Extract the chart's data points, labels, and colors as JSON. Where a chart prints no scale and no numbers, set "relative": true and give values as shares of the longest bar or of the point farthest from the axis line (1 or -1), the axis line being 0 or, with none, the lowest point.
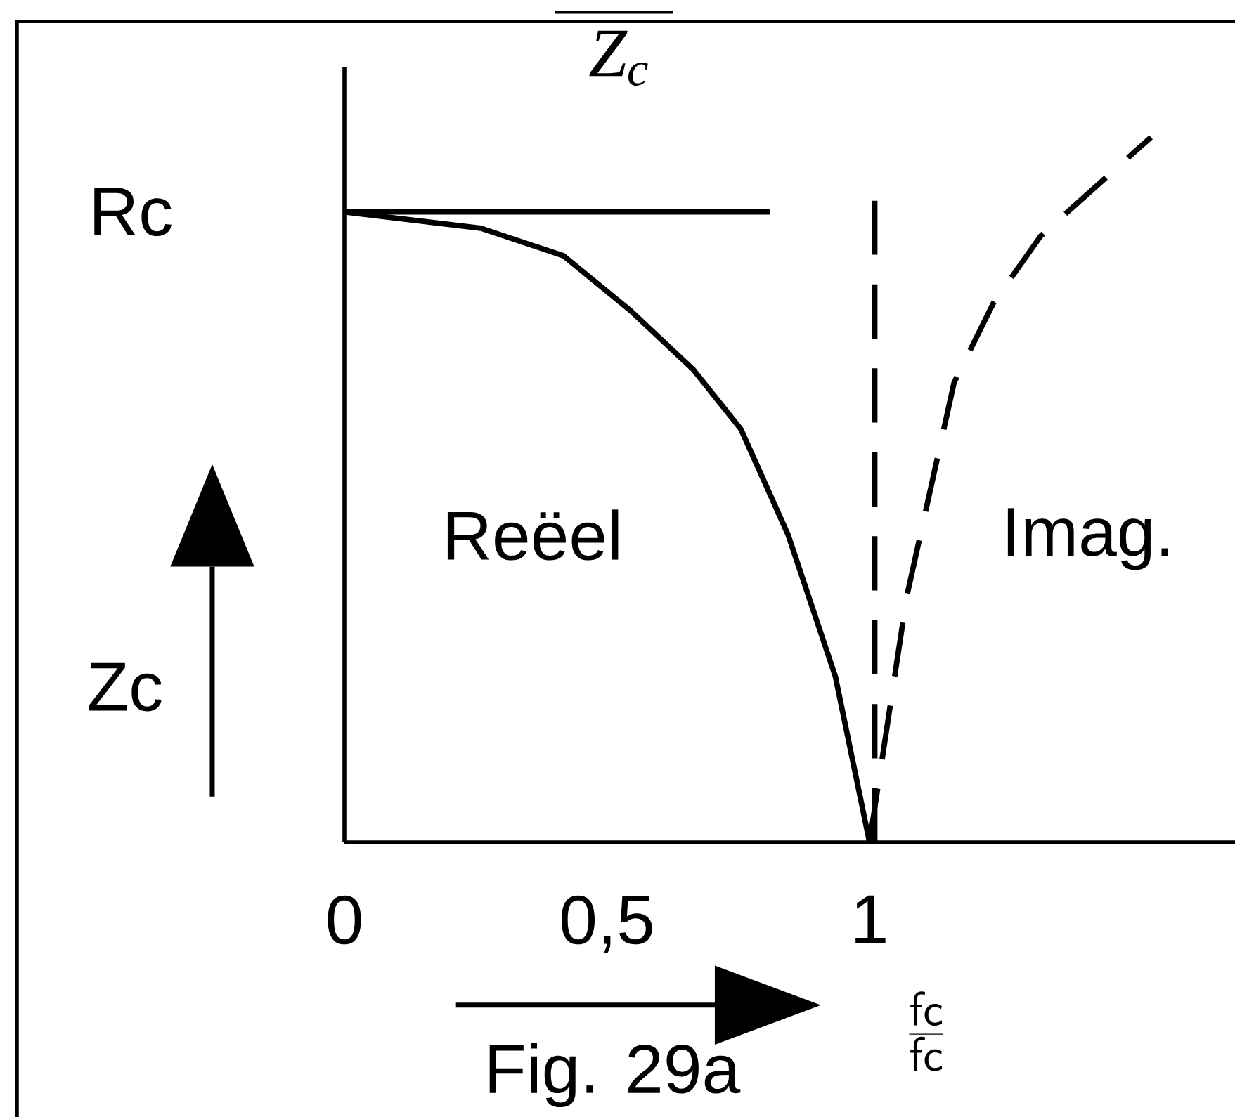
{
  "chart_data": {
    "type": "line",
    "relative": true,
    "title": "*Z*$_{c}$",
    "xlabel": "\\frac{\\mathsf{fc}}{\\mathsf{fc}}",
    "ylabel": "Zc",
    "annotations": [
      {
        "text": "Rc",
        "x": 0,
        "y": 0.894
      },
      "Reëel",
      "Imag.",
      "Fig. 29a"
    ],
    "xlim": [
      0,
      1.7
    ],
    "xticks": [
      0,
      {
        "value": 0.5,
        "label": "0,5"
      },
      1
    ],
    "marker": "none",
    "series": [
      {
        "color": "#000000",
        "line_style": "solid",
        "x": [
          0,
          0.26,
          0.417,
          0.545,
          0.665,
          0.755,
          0.845,
          0.935,
          1.0
        ],
        "values": [
          0.894,
          0.871,
          0.832,
          0.754,
          0.67,
          0.586,
          0.436,
          0.235,
          0
        ]
      },
      {
        "color": "#000000",
        "line_style": "solid",
        "x": [
          0,
          0.81
        ],
        "values": [
          0.894,
          0.894
        ]
      },
      {
        "color": "#000000",
        "line_style": "dashed",
        "x": [
          1.01,
          1.01
        ],
        "values": [
          0,
          0.91
        ]
      },
      {
        "color": "#000000",
        "line_style": "dashed",
        "x": [
          1.0,
          1.071,
          1.161,
          1.236,
          1.326,
          1.536
        ],
        "values": [
          0,
          0.349,
          0.652,
          0.765,
          0.86,
          1.0
        ]
      }
    ]
  }
}
